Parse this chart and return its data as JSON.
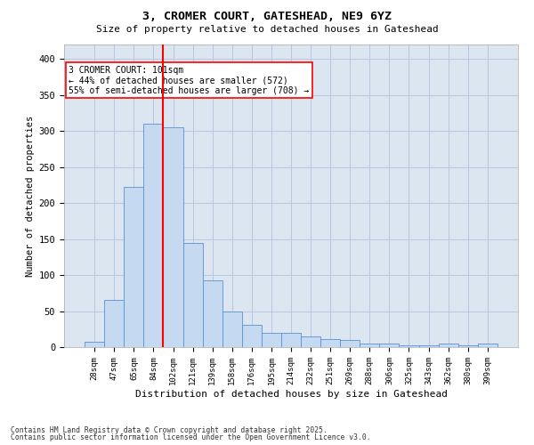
{
  "title_line1": "3, CROMER COURT, GATESHEAD, NE9 6YZ",
  "title_line2": "Size of property relative to detached houses in Gateshead",
  "xlabel": "Distribution of detached houses by size in Gateshead",
  "ylabel": "Number of detached properties",
  "categories": [
    "28sqm",
    "47sqm",
    "65sqm",
    "84sqm",
    "102sqm",
    "121sqm",
    "139sqm",
    "158sqm",
    "176sqm",
    "195sqm",
    "214sqm",
    "232sqm",
    "251sqm",
    "269sqm",
    "288sqm",
    "306sqm",
    "325sqm",
    "343sqm",
    "362sqm",
    "380sqm",
    "399sqm"
  ],
  "values": [
    8,
    65,
    222,
    310,
    305,
    144,
    93,
    49,
    31,
    20,
    20,
    15,
    11,
    10,
    5,
    5,
    3,
    2,
    5,
    2,
    5
  ],
  "bar_color": "#c5d9f0",
  "bar_edge_color": "#5b8fd4",
  "grid_color": "#b8c8e0",
  "background_color": "#dce6f1",
  "vline_color": "red",
  "vline_x_index": 4,
  "annotation_text": "3 CROMER COURT: 101sqm\n← 44% of detached houses are smaller (572)\n55% of semi-detached houses are larger (708) →",
  "annotation_box_color": "white",
  "annotation_box_edge": "red",
  "footnote_line1": "Contains HM Land Registry data © Crown copyright and database right 2025.",
  "footnote_line2": "Contains public sector information licensed under the Open Government Licence v3.0.",
  "ylim": [
    0,
    420
  ],
  "yticks": [
    0,
    50,
    100,
    150,
    200,
    250,
    300,
    350,
    400
  ]
}
